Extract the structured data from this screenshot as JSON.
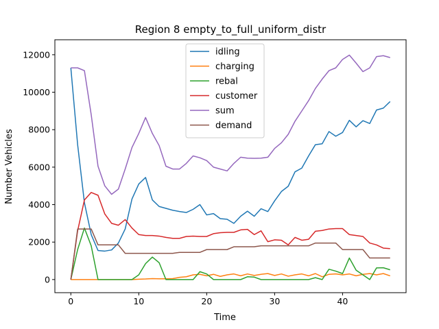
{
  "chart_data": {
    "type": "line",
    "title": "Region 8 empty_to_full_uniform_distr",
    "xlabel": "Time",
    "ylabel": "Number Vehicles",
    "xlim": [
      -2.35,
      49.35
    ],
    "ylim": [
      -700,
      12800
    ],
    "xticks": [
      0,
      10,
      20,
      30,
      40
    ],
    "yticks": [
      0,
      2000,
      4000,
      6000,
      8000,
      10000,
      12000
    ],
    "legend": "upper center",
    "grid": false,
    "x": [
      0,
      1,
      2,
      3,
      4,
      5,
      6,
      7,
      8,
      9,
      10,
      11,
      12,
      13,
      14,
      15,
      16,
      17,
      18,
      19,
      20,
      21,
      22,
      23,
      24,
      25,
      26,
      27,
      28,
      29,
      30,
      31,
      32,
      33,
      34,
      35,
      36,
      37,
      38,
      39,
      40,
      41,
      42,
      43,
      44,
      45,
      46,
      47
    ],
    "series": [
      {
        "name": "idling",
        "color": "#1f77b4",
        "values": [
          11300,
          7200,
          4100,
          2400,
          1550,
          1520,
          1580,
          1950,
          2700,
          4300,
          5100,
          5450,
          4250,
          3900,
          3800,
          3700,
          3630,
          3580,
          3750,
          4000,
          3450,
          3520,
          3250,
          3220,
          3000,
          3380,
          3650,
          3380,
          3780,
          3630,
          4200,
          4700,
          4980,
          5750,
          5950,
          6600,
          7200,
          7250,
          7900,
          7650,
          7850,
          8500,
          8150,
          8480,
          8330,
          9050,
          9150,
          9500
        ]
      },
      {
        "name": "charging",
        "color": "#ff7f0e",
        "values": [
          0,
          0,
          0,
          0,
          0,
          0,
          0,
          0,
          0,
          0,
          20,
          30,
          50,
          40,
          40,
          50,
          120,
          150,
          250,
          280,
          200,
          280,
          170,
          250,
          300,
          200,
          300,
          220,
          280,
          320,
          220,
          300,
          180,
          250,
          300,
          200,
          320,
          150,
          280,
          300,
          250,
          300,
          200,
          280,
          320,
          250,
          320,
          200
        ]
      },
      {
        "name": "rebal",
        "color": "#2ca02c",
        "values": [
          0,
          1600,
          2750,
          1800,
          0,
          0,
          0,
          0,
          0,
          0,
          250,
          850,
          1200,
          900,
          0,
          0,
          0,
          0,
          0,
          420,
          300,
          0,
          0,
          0,
          0,
          0,
          150,
          130,
          0,
          0,
          0,
          0,
          0,
          0,
          0,
          0,
          100,
          0,
          550,
          450,
          320,
          1150,
          500,
          250,
          0,
          620,
          630,
          520
        ]
      },
      {
        "name": "customer",
        "color": "#d62728",
        "values": [
          0,
          2600,
          4250,
          4650,
          4500,
          3500,
          3000,
          2900,
          3200,
          2750,
          2400,
          2350,
          2350,
          2320,
          2250,
          2200,
          2200,
          2300,
          2320,
          2300,
          2300,
          2450,
          2500,
          2520,
          2520,
          2650,
          2680,
          2400,
          2600,
          2020,
          2120,
          2100,
          1850,
          2250,
          2100,
          2150,
          2580,
          2620,
          2700,
          2720,
          2720,
          2400,
          2350,
          2300,
          1950,
          1850,
          1680,
          1650
        ]
      },
      {
        "name": "sum",
        "color": "#9467bd",
        "values": [
          11300,
          11300,
          11150,
          8800,
          6050,
          5000,
          4550,
          4830,
          5900,
          7050,
          7800,
          8650,
          7800,
          7150,
          6050,
          5900,
          5900,
          6200,
          6600,
          6500,
          6350,
          6000,
          5900,
          5800,
          6200,
          6530,
          6480,
          6470,
          6480,
          6530,
          7000,
          7300,
          7750,
          8450,
          9000,
          9550,
          10200,
          10700,
          11150,
          11300,
          11750,
          11980,
          11550,
          11100,
          11300,
          11900,
          11950,
          11850
        ]
      },
      {
        "name": "demand",
        "color": "#8c564b",
        "values": [
          0,
          2700,
          2700,
          2700,
          1850,
          1850,
          1850,
          1850,
          1400,
          1400,
          1400,
          1400,
          1400,
          1400,
          1400,
          1400,
          1450,
          1450,
          1450,
          1450,
          1600,
          1600,
          1600,
          1600,
          1750,
          1750,
          1750,
          1750,
          1800,
          1800,
          1800,
          1800,
          1800,
          1800,
          1800,
          1800,
          1950,
          1950,
          1950,
          1950,
          1600,
          1600,
          1600,
          1600,
          1150,
          1150,
          1150,
          1150
        ]
      }
    ]
  }
}
